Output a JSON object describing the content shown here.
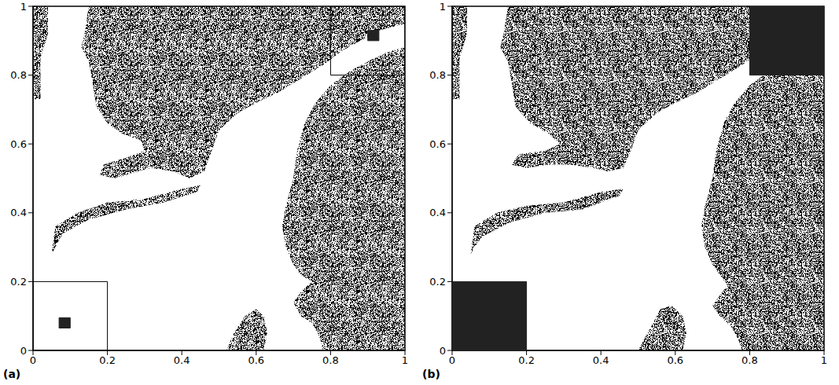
{
  "chart_data": [
    {
      "type": "region",
      "label": "(a)",
      "color": "#000000",
      "xlim": [
        0,
        1
      ],
      "ylim": [
        0,
        1
      ],
      "xticks": [
        0,
        0.2,
        0.4,
        0.6,
        0.8,
        1
      ],
      "yticks": [
        0,
        0.2,
        0.4,
        0.6,
        0.8,
        1
      ],
      "regions": [
        [
          [
            0,
            1
          ],
          [
            0.04,
            1
          ],
          [
            0.04,
            0.92
          ],
          [
            0.02,
            0.85
          ],
          [
            0.02,
            0.73
          ],
          [
            0,
            0.73
          ]
        ],
        [
          [
            0.15,
            1
          ],
          [
            1,
            1
          ],
          [
            1,
            0.95
          ],
          [
            0.93,
            0.93
          ],
          [
            0.88,
            0.9
          ],
          [
            0.83,
            0.87
          ],
          [
            0.78,
            0.83
          ],
          [
            0.72,
            0.79
          ],
          [
            0.66,
            0.75
          ],
          [
            0.6,
            0.72
          ],
          [
            0.55,
            0.69
          ],
          [
            0.5,
            0.64
          ],
          [
            0.48,
            0.58
          ],
          [
            0.46,
            0.52
          ],
          [
            0.42,
            0.5
          ],
          [
            0.38,
            0.52
          ],
          [
            0.32,
            0.53
          ],
          [
            0.28,
            0.52
          ],
          [
            0.22,
            0.5
          ],
          [
            0.18,
            0.51
          ],
          [
            0.19,
            0.54
          ],
          [
            0.25,
            0.56
          ],
          [
            0.3,
            0.58
          ],
          [
            0.29,
            0.61
          ],
          [
            0.24,
            0.63
          ],
          [
            0.2,
            0.66
          ],
          [
            0.17,
            0.71
          ],
          [
            0.16,
            0.78
          ],
          [
            0.15,
            0.84
          ],
          [
            0.13,
            0.88
          ],
          [
            0.14,
            0.93
          ]
        ],
        [
          [
            0.05,
            0.28
          ],
          [
            0.06,
            0.36
          ],
          [
            0.12,
            0.4
          ],
          [
            0.2,
            0.43
          ],
          [
            0.3,
            0.44
          ],
          [
            0.4,
            0.47
          ],
          [
            0.45,
            0.48
          ],
          [
            0.44,
            0.46
          ],
          [
            0.35,
            0.43
          ],
          [
            0.25,
            0.41
          ],
          [
            0.15,
            0.38
          ],
          [
            0.08,
            0.34
          ],
          [
            0.06,
            0.3
          ]
        ],
        [
          [
            1,
            0.88
          ],
          [
            0.96,
            0.87
          ],
          [
            0.9,
            0.84
          ],
          [
            0.85,
            0.81
          ],
          [
            0.8,
            0.77
          ],
          [
            0.76,
            0.72
          ],
          [
            0.73,
            0.66
          ],
          [
            0.71,
            0.58
          ],
          [
            0.7,
            0.5
          ],
          [
            0.68,
            0.42
          ],
          [
            0.67,
            0.36
          ],
          [
            0.68,
            0.3
          ],
          [
            0.7,
            0.25
          ],
          [
            0.72,
            0.22
          ],
          [
            0.75,
            0.2
          ],
          [
            0.72,
            0.17
          ],
          [
            0.7,
            0.14
          ],
          [
            0.72,
            0.1
          ],
          [
            0.75,
            0.08
          ],
          [
            0.77,
            0.04
          ],
          [
            0.78,
            0
          ],
          [
            1,
            0
          ]
        ],
        [
          [
            0.52,
            0
          ],
          [
            0.62,
            0
          ],
          [
            0.63,
            0.05
          ],
          [
            0.62,
            0.1
          ],
          [
            0.6,
            0.12
          ],
          [
            0.57,
            0.1
          ],
          [
            0.54,
            0.05
          ]
        ]
      ],
      "filled_boxes": [
        [
          [
            0.07,
            0.1
          ],
          [
            0.065,
            0.095
          ]
        ],
        [
          [
            0.9,
            0.93
          ],
          [
            0.9,
            0.93
          ]
        ]
      ],
      "outline_boxes": [
        [
          [
            0,
            0.2
          ],
          [
            0,
            0.2
          ]
        ],
        [
          [
            0.8,
            1
          ],
          [
            0.8,
            1
          ]
        ]
      ]
    },
    {
      "type": "region",
      "label": "(b)",
      "color": "#000000",
      "xlim": [
        0,
        1
      ],
      "ylim": [
        0,
        1
      ],
      "xticks": [
        0,
        0.2,
        0.4,
        0.6,
        0.8,
        1
      ],
      "yticks": [
        0,
        0.2,
        0.4,
        0.6,
        0.8,
        1
      ],
      "regions": [
        [
          [
            0,
            1
          ],
          [
            0.04,
            1
          ],
          [
            0.04,
            0.92
          ],
          [
            0.02,
            0.85
          ],
          [
            0.02,
            0.73
          ],
          [
            0,
            0.73
          ]
        ],
        [
          [
            0.15,
            1
          ],
          [
            1,
            1
          ],
          [
            1,
            0.95
          ],
          [
            0.93,
            0.93
          ],
          [
            0.88,
            0.9
          ],
          [
            0.83,
            0.87
          ],
          [
            0.78,
            0.83
          ],
          [
            0.72,
            0.79
          ],
          [
            0.66,
            0.75
          ],
          [
            0.6,
            0.72
          ],
          [
            0.55,
            0.69
          ],
          [
            0.5,
            0.64
          ],
          [
            0.48,
            0.58
          ],
          [
            0.46,
            0.53
          ],
          [
            0.42,
            0.52
          ],
          [
            0.38,
            0.53
          ],
          [
            0.32,
            0.54
          ],
          [
            0.26,
            0.54
          ],
          [
            0.2,
            0.53
          ],
          [
            0.16,
            0.54
          ],
          [
            0.18,
            0.57
          ],
          [
            0.25,
            0.58
          ],
          [
            0.29,
            0.6
          ],
          [
            0.26,
            0.63
          ],
          [
            0.21,
            0.66
          ],
          [
            0.17,
            0.71
          ],
          [
            0.16,
            0.78
          ],
          [
            0.15,
            0.84
          ],
          [
            0.13,
            0.88
          ],
          [
            0.14,
            0.93
          ]
        ],
        [
          [
            0.05,
            0.28
          ],
          [
            0.06,
            0.36
          ],
          [
            0.12,
            0.4
          ],
          [
            0.2,
            0.42
          ],
          [
            0.3,
            0.43
          ],
          [
            0.4,
            0.46
          ],
          [
            0.46,
            0.47
          ],
          [
            0.45,
            0.45
          ],
          [
            0.35,
            0.41
          ],
          [
            0.25,
            0.4
          ],
          [
            0.15,
            0.37
          ],
          [
            0.08,
            0.33
          ],
          [
            0.06,
            0.3
          ]
        ],
        [
          [
            1,
            0.88
          ],
          [
            0.96,
            0.87
          ],
          [
            0.9,
            0.84
          ],
          [
            0.85,
            0.81
          ],
          [
            0.8,
            0.77
          ],
          [
            0.76,
            0.72
          ],
          [
            0.73,
            0.66
          ],
          [
            0.71,
            0.58
          ],
          [
            0.7,
            0.5
          ],
          [
            0.68,
            0.42
          ],
          [
            0.67,
            0.36
          ],
          [
            0.68,
            0.3
          ],
          [
            0.7,
            0.25
          ],
          [
            0.72,
            0.22
          ],
          [
            0.74,
            0.19
          ],
          [
            0.72,
            0.16
          ],
          [
            0.7,
            0.13
          ],
          [
            0.72,
            0.1
          ],
          [
            0.75,
            0.07
          ],
          [
            0.77,
            0.03
          ],
          [
            0.78,
            0
          ],
          [
            1,
            0
          ]
        ],
        [
          [
            0.5,
            0
          ],
          [
            0.62,
            0
          ],
          [
            0.63,
            0.05
          ],
          [
            0.62,
            0.1
          ],
          [
            0.59,
            0.13
          ],
          [
            0.56,
            0.12
          ],
          [
            0.53,
            0.06
          ]
        ]
      ],
      "filled_boxes": [
        [
          [
            0,
            0.2
          ],
          [
            0,
            0.2
          ]
        ],
        [
          [
            0.8,
            1
          ],
          [
            0.8,
            1
          ]
        ]
      ],
      "outline_boxes": []
    }
  ]
}
